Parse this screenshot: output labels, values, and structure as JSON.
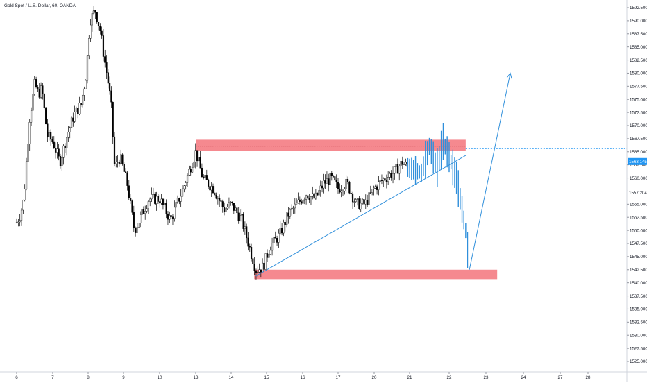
{
  "symbol": {
    "title": "Gold Spot / U.S. Dollar, 60, OANDA"
  },
  "price_axis": {
    "ticks": [
      "1592.500",
      "1590.000",
      "1587.500",
      "1585.000",
      "1582.500",
      "1580.000",
      "1577.500",
      "1575.000",
      "1572.500",
      "1570.000",
      "1567.500",
      "1565.000",
      "1562.500",
      "1560.000",
      "1557.500",
      "1555.000",
      "1552.500",
      "1550.000",
      "1547.500",
      "1545.000",
      "1542.500",
      "1540.000",
      "1537.500",
      "1535.000",
      "1532.500",
      "1530.000",
      "1527.500",
      "1525.000"
    ],
    "current_price_label": "1563.145",
    "crosshair_price_label": "1557.204",
    "current_price_color": "#2196f3"
  },
  "time_axis": {
    "ticks": [
      "6",
      "7",
      "8",
      "9",
      "10",
      "13",
      "14",
      "15",
      "16",
      "17",
      "20",
      "21",
      "22",
      "23",
      "24",
      "27",
      "28"
    ]
  },
  "colors": {
    "candles": "#000000",
    "zone": "#f47c83",
    "projection": "#2f8fdb",
    "dotted_line": "#2196f3"
  },
  "chart_data": {
    "type": "candlestick",
    "title": "Gold Spot / U.S. Dollar, 60, OANDA",
    "x_ticks": [
      "6",
      "7",
      "8",
      "9",
      "10",
      "13",
      "14",
      "15",
      "16",
      "17",
      "20",
      "21",
      "22",
      "23",
      "24",
      "27",
      "28"
    ],
    "ylim": [
      1523.5,
      1594
    ],
    "y_ticks": [
      1592.5,
      1590,
      1587.5,
      1585,
      1582.5,
      1580,
      1577.5,
      1575,
      1572.5,
      1570,
      1567.5,
      1565,
      1562.5,
      1560,
      1557.5,
      1555,
      1552.5,
      1550,
      1547.5,
      1545,
      1542.5,
      1540,
      1537.5,
      1535,
      1532.5,
      1530,
      1527.5,
      1525
    ],
    "last_price": 1563.145,
    "key_levels": [
      1557.204
    ],
    "price_path_points": [
      {
        "x": 6,
        "y": 1551.5
      },
      {
        "x": 6.1,
        "y": 1553
      },
      {
        "x": 6.2,
        "y": 1556
      },
      {
        "x": 6.35,
        "y": 1571
      },
      {
        "x": 6.5,
        "y": 1578
      },
      {
        "x": 6.6,
        "y": 1576
      },
      {
        "x": 6.7,
        "y": 1577
      },
      {
        "x": 6.85,
        "y": 1568
      },
      {
        "x": 7,
        "y": 1567
      },
      {
        "x": 7.2,
        "y": 1563
      },
      {
        "x": 7.4,
        "y": 1568
      },
      {
        "x": 7.6,
        "y": 1572
      },
      {
        "x": 7.8,
        "y": 1574
      },
      {
        "x": 7.95,
        "y": 1580
      },
      {
        "x": 8.05,
        "y": 1590
      },
      {
        "x": 8.2,
        "y": 1592
      },
      {
        "x": 8.35,
        "y": 1588
      },
      {
        "x": 8.45,
        "y": 1583
      },
      {
        "x": 8.55,
        "y": 1579
      },
      {
        "x": 8.65,
        "y": 1574
      },
      {
        "x": 8.75,
        "y": 1562
      },
      {
        "x": 8.9,
        "y": 1564
      },
      {
        "x": 9.1,
        "y": 1559
      },
      {
        "x": 9.3,
        "y": 1550
      },
      {
        "x": 9.5,
        "y": 1553
      },
      {
        "x": 9.7,
        "y": 1556
      },
      {
        "x": 10,
        "y": 1556
      },
      {
        "x": 10.3,
        "y": 1552
      },
      {
        "x": 10.6,
        "y": 1557
      },
      {
        "x": 10.85,
        "y": 1562
      },
      {
        "x": 11,
        "y": 1565
      },
      {
        "x": 11.2,
        "y": 1560
      },
      {
        "x": 11.5,
        "y": 1558
      },
      {
        "x": 11.8,
        "y": 1554
      },
      {
        "x": 12,
        "y": 1555
      },
      {
        "x": 12.3,
        "y": 1552
      },
      {
        "x": 12.55,
        "y": 1546
      },
      {
        "x": 12.7,
        "y": 1542.5
      },
      {
        "x": 12.9,
        "y": 1543
      },
      {
        "x": 13.1,
        "y": 1547
      },
      {
        "x": 13.35,
        "y": 1549
      },
      {
        "x": 13.6,
        "y": 1553
      },
      {
        "x": 13.85,
        "y": 1555
      },
      {
        "x": 14.1,
        "y": 1557
      },
      {
        "x": 14.35,
        "y": 1556
      },
      {
        "x": 14.6,
        "y": 1559
      },
      {
        "x": 14.8,
        "y": 1560
      },
      {
        "x": 15,
        "y": 1558
      },
      {
        "x": 15.25,
        "y": 1559
      },
      {
        "x": 15.5,
        "y": 1555
      },
      {
        "x": 15.75,
        "y": 1555
      },
      {
        "x": 16,
        "y": 1558
      },
      {
        "x": 16.3,
        "y": 1560
      },
      {
        "x": 16.55,
        "y": 1561
      },
      {
        "x": 16.8,
        "y": 1563
      },
      {
        "x": 16.95,
        "y": 1562
      }
    ],
    "series": [
      {
        "name": "",
        "type": "projection",
        "values": [
          {
            "x": 16.95,
            "y": 1562
          },
          {
            "x": 17.3,
            "y": 1561
          },
          {
            "x": 17.5,
            "y": 1566
          },
          {
            "x": 17.7,
            "y": 1562
          },
          {
            "x": 17.85,
            "y": 1567
          },
          {
            "x": 18.05,
            "y": 1563
          },
          {
            "x": 18.2,
            "y": 1560
          },
          {
            "x": 18.35,
            "y": 1554
          },
          {
            "x": 18.45,
            "y": 1550
          },
          {
            "x": 18.55,
            "y": 1542.5
          },
          {
            "x": 19.65,
            "y": 1580
          }
        ]
      }
    ],
    "zones": [
      {
        "y": [
          1565.2,
          1567.3
        ],
        "x": [
          11.0,
          18.45
        ]
      },
      {
        "y": [
          1540.7,
          1542.5
        ],
        "x": [
          12.65,
          19.3
        ]
      }
    ],
    "trendline": {
      "x": [
        12.7,
        18.45
      ],
      "y": [
        1541.3,
        1564.3
      ]
    },
    "horizontal_line": {
      "y": 1565.6,
      "x_from": 18.45,
      "style": "dotted"
    }
  }
}
